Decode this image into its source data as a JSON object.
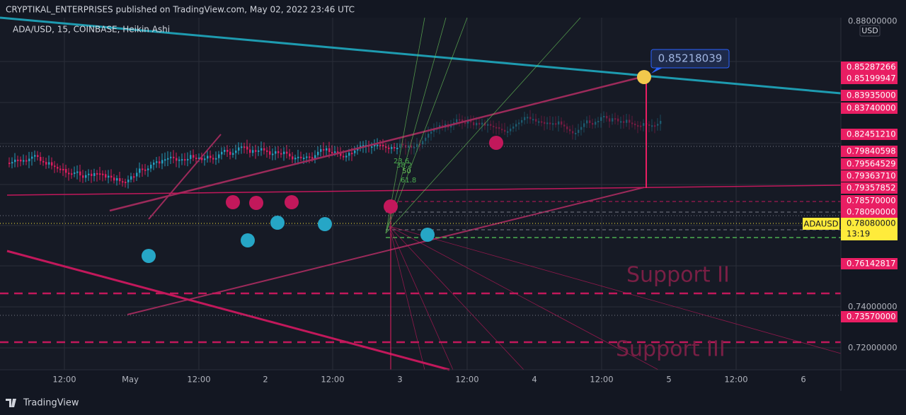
{
  "header": {
    "publisher": "CRYPTIKAL_ENTERPRISES published on TradingView.com, May 02, 2022 23:46 UTC"
  },
  "chart": {
    "symbol": "ADA/USD, 15, COINBASE, Heikin Ashi",
    "currency": "USD",
    "callout": "0.85218039",
    "axis_labels": [
      "0.88000000",
      "0.74000000",
      "0.72000000"
    ],
    "price_tags": [
      "0.85287266",
      "0.85199947",
      "0.83935000",
      "0.83740000",
      "0.82451210",
      "0.79840598",
      "0.79564529",
      "0.79363710",
      "0.79357852",
      "0.78570000",
      "0.78090000",
      "0.76142817",
      "0.73570000"
    ],
    "last_price": {
      "symbol": "ADAUSD",
      "price": "0.78080000",
      "countdown": "13:19"
    },
    "time_labels": [
      "12:00",
      "May",
      "12:00",
      "2",
      "12:00",
      "3",
      "12:00",
      "4",
      "12:00",
      "5",
      "12:00",
      "6"
    ],
    "annotations": [
      "Support II",
      "Support III"
    ],
    "fib_labels": [
      "23.6",
      "38.2",
      "50",
      "61.8"
    ]
  },
  "footer": {
    "brand": "TradingView"
  }
}
